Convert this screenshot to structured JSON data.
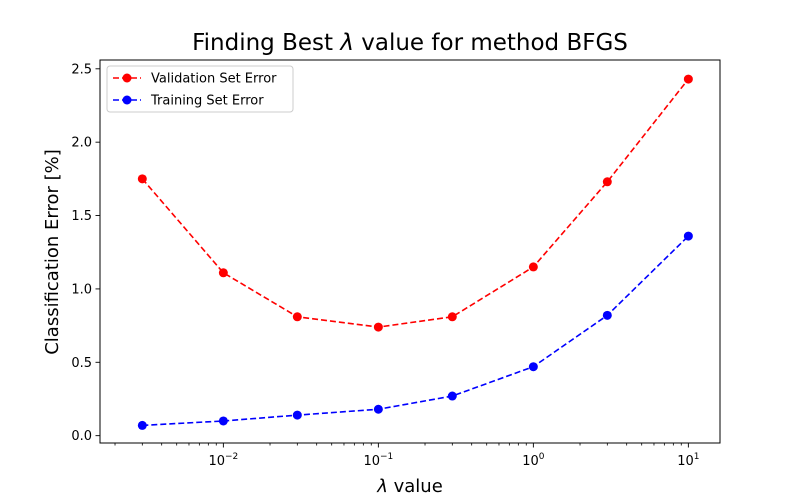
{
  "chart_data": {
    "type": "line",
    "title": {
      "prefix": "Finding Best ",
      "symbol": "λ",
      "suffix": " value for method BFGS"
    },
    "xlabel": {
      "symbol": "λ",
      "suffix": " value"
    },
    "ylabel": "Classification Error [%]",
    "x_scale": "log",
    "xlim": [
      0.0016,
      16
    ],
    "ylim": [
      -0.05,
      2.56
    ],
    "grid": false,
    "legend_position": "top-left",
    "x_ticks": [
      {
        "value": 0.01,
        "base": "10",
        "exp": "−2"
      },
      {
        "value": 0.1,
        "base": "10",
        "exp": "−1"
      },
      {
        "value": 1,
        "base": "10",
        "exp": "0"
      },
      {
        "value": 10,
        "base": "10",
        "exp": "1"
      }
    ],
    "y_ticks": [
      {
        "value": 0.0,
        "label": "0.0"
      },
      {
        "value": 0.5,
        "label": "0.5"
      },
      {
        "value": 1.0,
        "label": "1.0"
      },
      {
        "value": 1.5,
        "label": "1.5"
      },
      {
        "value": 2.0,
        "label": "2.0"
      },
      {
        "value": 2.5,
        "label": "2.5"
      }
    ],
    "x": [
      0.003,
      0.01,
      0.03,
      0.1,
      0.3,
      1,
      3,
      10
    ],
    "series": [
      {
        "name": "Validation Set Error",
        "color": "#ff0000",
        "values": [
          1.75,
          1.11,
          0.81,
          0.74,
          0.81,
          1.15,
          1.73,
          2.43
        ]
      },
      {
        "name": "Training Set Error",
        "color": "#0000ff",
        "values": [
          0.07,
          0.1,
          0.14,
          0.18,
          0.27,
          0.47,
          0.82,
          1.36
        ]
      }
    ]
  }
}
